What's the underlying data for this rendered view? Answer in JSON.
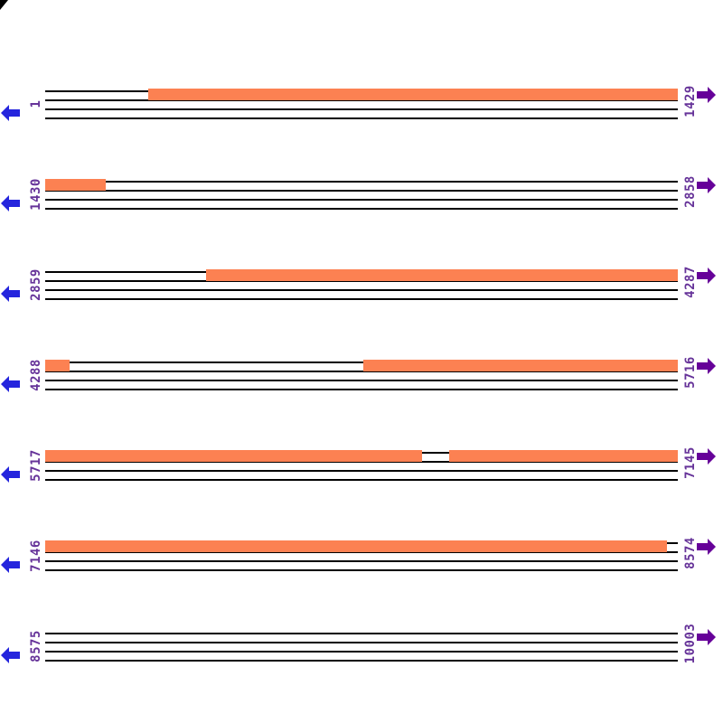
{
  "colors": {
    "feature": "#FC8152",
    "left_arrow": "#2525DD",
    "right_arrow": "#660099",
    "label_text": "#663399",
    "strand_line": "#000000"
  },
  "map": {
    "row_span": 1429,
    "rows": [
      {
        "start_label": "1",
        "end_label": "1429",
        "segments": [
          {
            "start_pct": 16.3,
            "end_pct": 100
          }
        ]
      },
      {
        "start_label": "1430",
        "end_label": "2858",
        "segments": [
          {
            "start_pct": 0,
            "end_pct": 9.6
          }
        ]
      },
      {
        "start_label": "2859",
        "end_label": "4287",
        "segments": [
          {
            "start_pct": 25.4,
            "end_pct": 100
          }
        ]
      },
      {
        "start_label": "4288",
        "end_label": "5716",
        "segments": [
          {
            "start_pct": 0,
            "end_pct": 3.9
          },
          {
            "start_pct": 50.3,
            "end_pct": 100
          }
        ]
      },
      {
        "start_label": "5717",
        "end_label": "7145",
        "segments": [
          {
            "start_pct": 0,
            "end_pct": 59.6
          },
          {
            "start_pct": 63.9,
            "end_pct": 100
          }
        ]
      },
      {
        "start_label": "7146",
        "end_label": "8574",
        "segments": [
          {
            "start_pct": 0,
            "end_pct": 98.3
          }
        ]
      },
      {
        "start_label": "8575",
        "end_label": "10003",
        "segments": []
      }
    ]
  }
}
